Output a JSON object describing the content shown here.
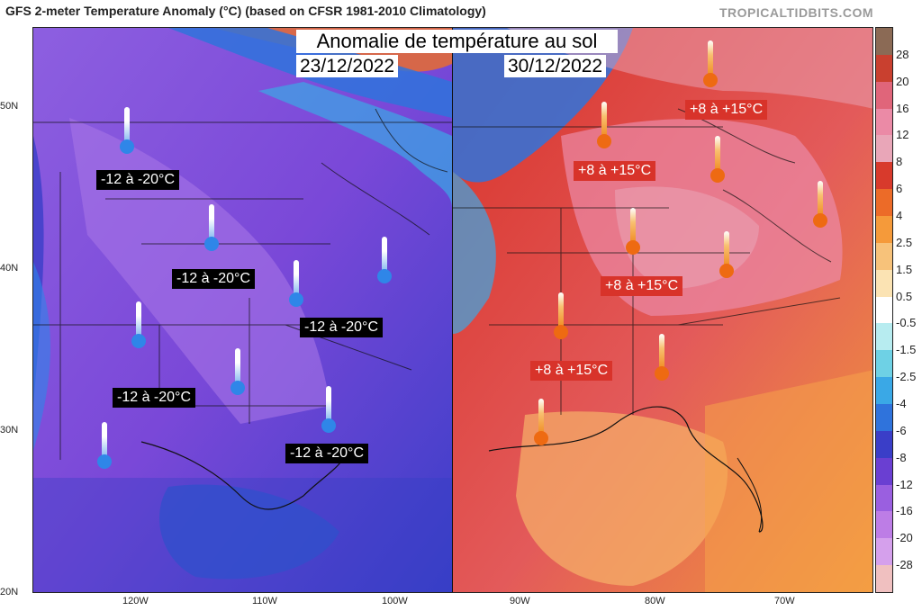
{
  "header": {
    "title": "GFS 2-meter Temperature Anomaly (°C) (based on CFSR 1981-2010 Climatology)",
    "source": "TROPICALTIDBITS.COM"
  },
  "overlay": {
    "title": "Anomalie de température au sol",
    "date_left": "23/12/2022",
    "date_right": "30/12/2022"
  },
  "cold_labels": [
    "-12 à -20°C",
    "-12 à -20°C",
    "-12 à -20°C",
    "-12 à -20°C",
    "-12 à -20°C"
  ],
  "warm_labels": [
    "+8 à +15°C",
    "+8 à +15°C",
    "+8 à +15°C",
    "+8 à +15°C"
  ],
  "axes": {
    "latitudes": [
      "50N",
      "40N",
      "30N",
      "20N"
    ],
    "longitudes_left": [
      "120W",
      "110W",
      "100W"
    ],
    "longitudes_right": [
      "90W",
      "80W",
      "70W"
    ]
  },
  "colorbar": {
    "ticks": [
      "28",
      "20",
      "16",
      "12",
      "8",
      "6",
      "4",
      "2.5",
      "1.5",
      "0.5",
      "-0.5",
      "-1.5",
      "-2.5",
      "-4",
      "-6",
      "-8",
      "-12",
      "-16",
      "-20",
      "-28"
    ],
    "colors": [
      "#8b6a55",
      "#c9402f",
      "#e0657a",
      "#eb8aa6",
      "#e9a6b8",
      "#d83a2c",
      "#ec6b28",
      "#f59a3a",
      "#f7c27a",
      "#fbe3b3",
      "#ffffff",
      "#b7ecf0",
      "#6ed1e5",
      "#3aa8e6",
      "#2f73dc",
      "#3a3ec8",
      "#6a3fd2",
      "#9a5fe0",
      "#bd7de6",
      "#d5a0ec",
      "#f0c0c0"
    ]
  }
}
